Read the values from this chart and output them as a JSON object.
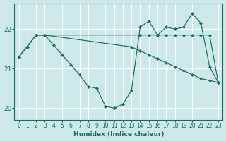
{
  "xlabel": "Humidex (Indice chaleur)",
  "xlim": [
    -0.5,
    23.5
  ],
  "ylim": [
    19.7,
    22.65
  ],
  "yticks": [
    20,
    21,
    22
  ],
  "xticks": [
    0,
    1,
    2,
    3,
    4,
    5,
    6,
    7,
    8,
    9,
    10,
    11,
    12,
    13,
    14,
    15,
    16,
    17,
    18,
    19,
    20,
    21,
    22,
    23
  ],
  "bg_color": "#cce8e8",
  "line_color": "#1a6b5a",
  "grid_color": "#ffffff",
  "line1_x": [
    0,
    1,
    2,
    3,
    4,
    5,
    6,
    7,
    8,
    9,
    10,
    11,
    12,
    13,
    14,
    15,
    16,
    17,
    18,
    19,
    20,
    21,
    22,
    23
  ],
  "line1_y": [
    21.3,
    21.55,
    21.85,
    21.85,
    21.6,
    21.35,
    21.1,
    20.85,
    20.55,
    20.5,
    20.05,
    20.0,
    20.1,
    20.45,
    22.05,
    22.2,
    21.85,
    22.05,
    22.0,
    22.05,
    22.4,
    22.15,
    21.05,
    20.65
  ],
  "line2_x": [
    2,
    3,
    14,
    15,
    16,
    17,
    18,
    19,
    20,
    21,
    22,
    23
  ],
  "line2_y": [
    21.85,
    21.85,
    21.85,
    21.85,
    21.85,
    21.85,
    21.85,
    21.85,
    21.85,
    21.85,
    21.85,
    20.65
  ],
  "line3_x": [
    0,
    2,
    3,
    13,
    14,
    15,
    16,
    17,
    18,
    19,
    20,
    21,
    22,
    23
  ],
  "line3_y": [
    21.3,
    21.85,
    21.85,
    21.55,
    21.45,
    21.35,
    21.25,
    21.15,
    21.05,
    20.95,
    20.85,
    20.75,
    20.7,
    20.65
  ]
}
